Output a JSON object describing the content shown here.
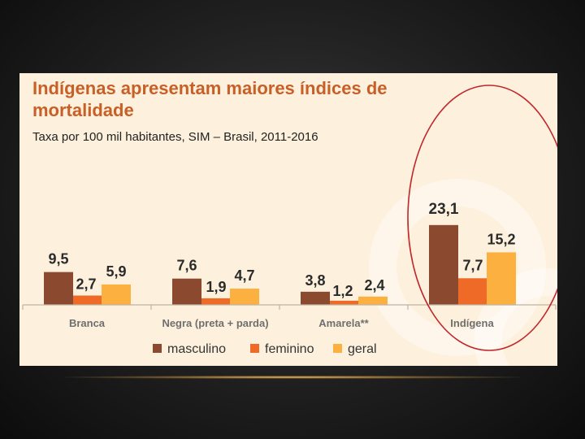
{
  "colors": {
    "masculino": "#8b4a2f",
    "feminino": "#ee6a26",
    "geral": "#fbb040",
    "title": "#c85f27",
    "highlight": "#c0262c",
    "axis": "#bfb3a3"
  },
  "chart_data": {
    "type": "bar",
    "title": "Indígenas apresentam maiores índices de mortalidade",
    "title_lines": [
      "Indígenas apresentam maiores índices de",
      "mortalidade"
    ],
    "subtitle": "Taxa por 100 mil habitantes, SIM – Brasil, 2011-2016",
    "categories": [
      "Branca",
      "Negra (preta + parda)",
      "Amarela**",
      "Indígena"
    ],
    "series": [
      {
        "name": "masculino",
        "values": [
          9.5,
          7.6,
          3.8,
          23.1
        ],
        "labels": [
          "9,5",
          "7,6",
          "3,8",
          "23,1"
        ]
      },
      {
        "name": "feminino",
        "values": [
          2.7,
          1.9,
          1.2,
          7.7
        ],
        "labels": [
          "2,7",
          "1,9",
          "1,2",
          "7,7"
        ]
      },
      {
        "name": "geral",
        "values": [
          5.9,
          4.7,
          2.4,
          15.2
        ],
        "labels": [
          "5,9",
          "4,7",
          "2,4",
          "15,2"
        ]
      }
    ],
    "ylim": [
      0,
      25
    ],
    "highlighted_category": "Indígena",
    "legend_position": "bottom"
  }
}
